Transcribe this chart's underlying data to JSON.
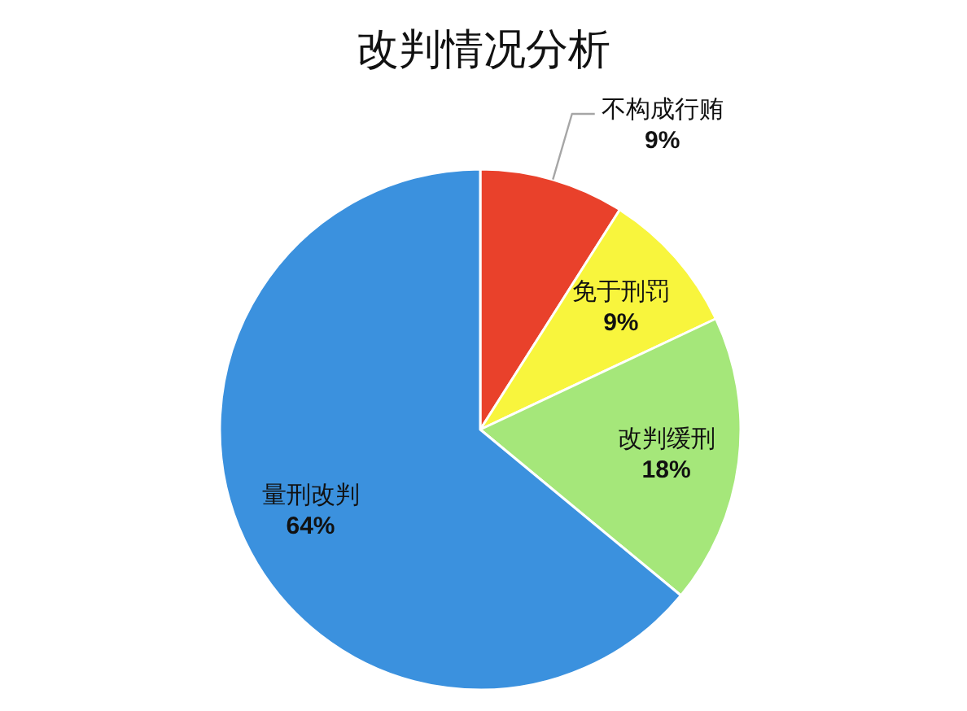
{
  "chart_data": {
    "type": "pie",
    "title": "改判情况分析",
    "categories": [
      "不构成行贿",
      "免于刑罚",
      "改判缓刑",
      "量刑改判"
    ],
    "values": [
      9,
      9,
      18,
      64
    ],
    "colors": [
      "#e9412b",
      "#f8f53d",
      "#a5e77a",
      "#3b91de"
    ],
    "value_labels": [
      "9%",
      "9%",
      "18%",
      "64%"
    ]
  }
}
